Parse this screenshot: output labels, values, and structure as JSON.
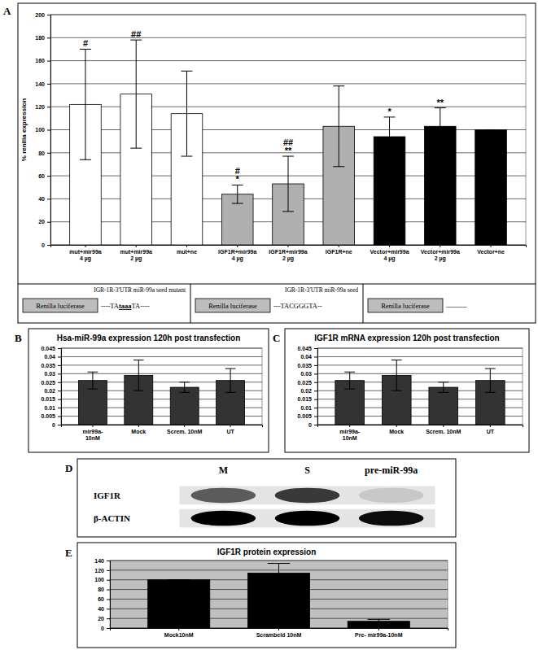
{
  "chart_data": [
    {
      "panel": "A",
      "type": "bar",
      "y_label": "% renilla expression",
      "categories": [
        "mut+mir99a\n4 µg",
        "mut+mir99a\n2 µg",
        "mut+ne",
        "IGF1R+mir99a\n4 µg",
        "IGF1R+mir99a\n2 µg",
        "IGF1R+ne",
        "Vector+mir99a\n4 µg",
        "Vector+mir99a\n2 µg",
        "Vector+ne"
      ],
      "values": [
        122,
        131,
        114,
        44,
        53,
        103,
        94,
        103,
        100
      ],
      "errors": [
        48,
        47,
        37,
        8,
        24,
        35,
        17,
        16,
        0
      ],
      "colors": [
        "#ffffff",
        "#ffffff",
        "#ffffff",
        "#b0b0b0",
        "#b0b0b0",
        "#b0b0b0",
        "#000000",
        "#000000",
        "#000000"
      ],
      "annotations": [
        [
          "#"
        ],
        [
          "##"
        ],
        null,
        [
          "#",
          "*"
        ],
        [
          "##",
          "**"
        ],
        null,
        [
          "*"
        ],
        [
          "**"
        ],
        null
      ],
      "ylim": [
        0,
        200
      ],
      "yticks": [
        0,
        20,
        40,
        60,
        80,
        100,
        120,
        140,
        160,
        180,
        200
      ],
      "grid": true,
      "constructs": [
        {
          "title": "IGR-1R-3'UTR miR-99a seed mutant",
          "box": "Renilla luciferase",
          "sequence": "----TAtaaaTA----"
        },
        {
          "title": "IGR-1R-3'UTR miR-99a seed",
          "box": "Renilla luciferase",
          "sequence": "---TACGGGTA--"
        },
        {
          "title": null,
          "box": "Renilla luciferase",
          "sequence": "———"
        }
      ]
    },
    {
      "panel": "B",
      "type": "bar",
      "title": "Hsa-miR-99a expression 120h post transfection",
      "categories": [
        "mir99a-\n10nM",
        "Mock",
        "Screm. 10nM",
        "UT"
      ],
      "values": [
        0.026,
        0.029,
        0.022,
        0.026
      ],
      "errors": [
        0.005,
        0.009,
        0.003,
        0.007
      ],
      "color": "#333333",
      "ylim": [
        0,
        0.045
      ],
      "yticks": [
        0,
        0.005,
        0.01,
        0.015,
        0.02,
        0.025,
        0.03,
        0.035,
        0.04,
        0.045
      ],
      "grid": true
    },
    {
      "panel": "C",
      "type": "bar",
      "title": "IGF1R mRNA expression 120h post transfection",
      "categories": [
        "mir99a-\n10nM",
        "Mock",
        "Screm. 10nM",
        "UT"
      ],
      "values": [
        0.026,
        0.029,
        0.022,
        0.026
      ],
      "errors": [
        0.005,
        0.009,
        0.003,
        0.007
      ],
      "color": "#333333",
      "ylim": [
        0,
        0.045
      ],
      "yticks": [
        0,
        0.005,
        0.01,
        0.015,
        0.02,
        0.025,
        0.03,
        0.035,
        0.04,
        0.045
      ],
      "grid": true
    },
    {
      "panel": "D",
      "type": "blot",
      "lanes": [
        "M",
        "S",
        "pre-miR-99a"
      ],
      "rows": [
        "IGF1R",
        "β-ACTIN"
      ],
      "values": [
        [
          0.6,
          0.75,
          0.12
        ],
        [
          1,
          1,
          0.95
        ]
      ]
    },
    {
      "panel": "E",
      "type": "bar",
      "title": "IGF1R protein expression",
      "categories": [
        "Mock10nM",
        "Scrambeld 10nM",
        "Pre- mir99a-10nM"
      ],
      "values": [
        100,
        114,
        14
      ],
      "errors": [
        0,
        20,
        4
      ],
      "color": "#000000",
      "ylim": [
        0,
        140
      ],
      "yticks": [
        0,
        20,
        40,
        60,
        80,
        100,
        120,
        140
      ],
      "grid": true
    }
  ]
}
